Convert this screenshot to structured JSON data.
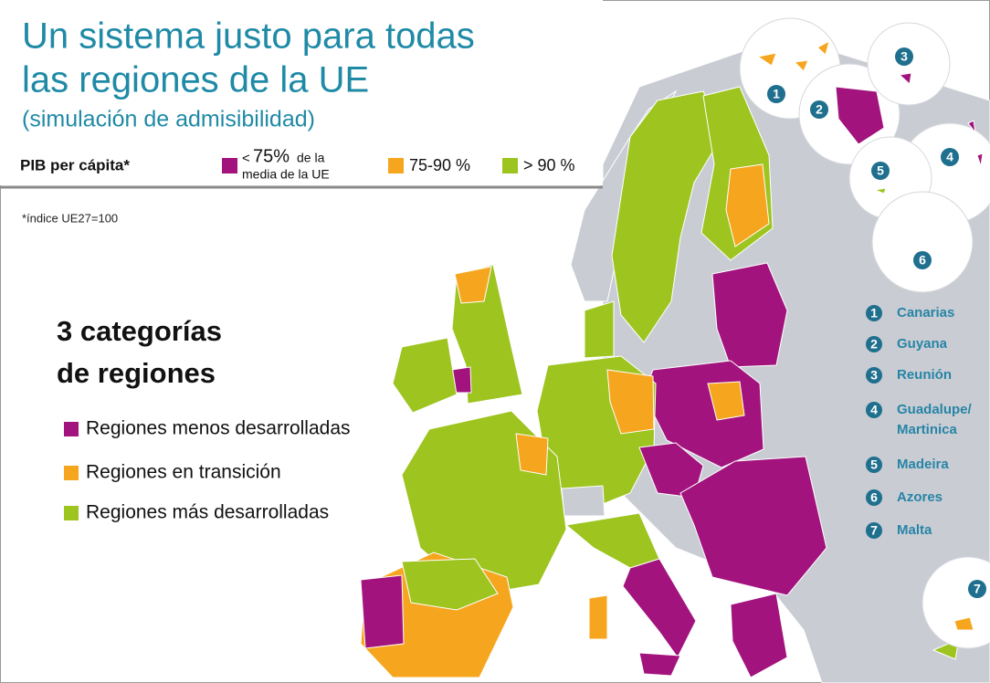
{
  "header": {
    "title_lines": [
      "Un sistema justo para todas",
      "las regiones de la UE"
    ],
    "subtitle": "(simulación de admisibilidad)"
  },
  "legend": {
    "label": "PIB per cápita*",
    "items": [
      {
        "color": "#a2137d",
        "prefix": "<",
        "value": "75%",
        "text_lines": [
          "de la",
          "media de la UE"
        ]
      },
      {
        "color": "#f6a61e",
        "text": "75-90 %"
      },
      {
        "color": "#9dc41f",
        "text": "> 90 %"
      }
    ]
  },
  "footnote": "*índice UE27=100",
  "categories": {
    "heading_lines": [
      "3 categorías",
      "de regiones"
    ],
    "items": [
      {
        "color": "#a2137d",
        "text": "Regiones menos desarrolladas"
      },
      {
        "color": "#f6a61e",
        "text": "Regiones en transición"
      },
      {
        "color": "#9dc41f",
        "text": "Regiones más desarrolladas"
      }
    ]
  },
  "outermost": {
    "items": [
      {
        "number": 1,
        "name_lines": [
          "Canarias"
        ]
      },
      {
        "number": 2,
        "name_lines": [
          "Guyana"
        ]
      },
      {
        "number": 3,
        "name_lines": [
          "Reunión"
        ]
      },
      {
        "number": 4,
        "name_lines": [
          "Guadalupe/",
          "Martinica"
        ]
      },
      {
        "number": 5,
        "name_lines": [
          "Madeira"
        ]
      },
      {
        "number": 6,
        "name_lines": [
          "Azores"
        ]
      },
      {
        "number": 7,
        "name_lines": [
          "Malta"
        ]
      }
    ]
  }
}
